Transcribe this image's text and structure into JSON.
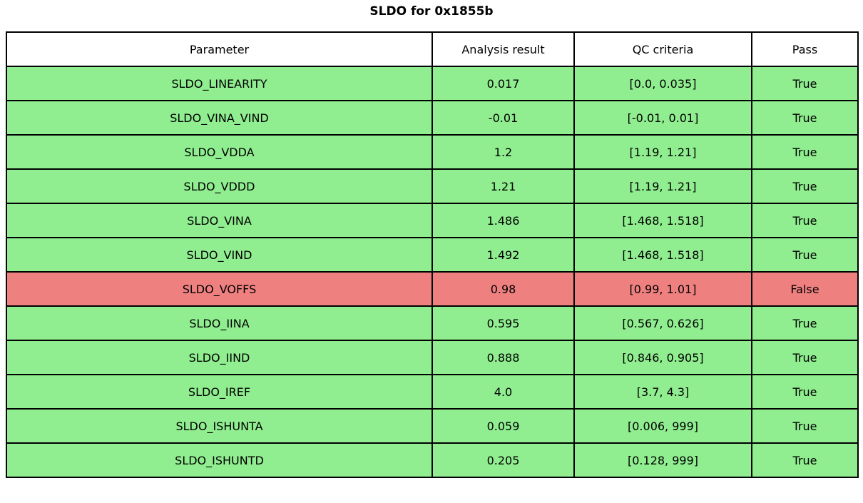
{
  "colors": {
    "pass_green": "#90EE90",
    "fail_red": "#EF8080",
    "header_bg": "#FFFFFF",
    "border": "#000000",
    "text": "#000000"
  },
  "chart_data": {
    "type": "table",
    "title": "SLDO for 0x1855b",
    "columns": [
      "Parameter",
      "Analysis result",
      "QC criteria",
      "Pass"
    ],
    "rows": [
      {
        "parameter": "SLDO_LINEARITY",
        "analysis_result": "0.017",
        "qc_criteria": "[0.0, 0.035]",
        "pass": "True"
      },
      {
        "parameter": "SLDO_VINA_VIND",
        "analysis_result": "-0.01",
        "qc_criteria": "[-0.01, 0.01]",
        "pass": "True"
      },
      {
        "parameter": "SLDO_VDDA",
        "analysis_result": "1.2",
        "qc_criteria": "[1.19, 1.21]",
        "pass": "True"
      },
      {
        "parameter": "SLDO_VDDD",
        "analysis_result": "1.21",
        "qc_criteria": "[1.19, 1.21]",
        "pass": "True"
      },
      {
        "parameter": "SLDO_VINA",
        "analysis_result": "1.486",
        "qc_criteria": "[1.468, 1.518]",
        "pass": "True"
      },
      {
        "parameter": "SLDO_VIND",
        "analysis_result": "1.492",
        "qc_criteria": "[1.468, 1.518]",
        "pass": "True"
      },
      {
        "parameter": "SLDO_VOFFS",
        "analysis_result": "0.98",
        "qc_criteria": "[0.99, 1.01]",
        "pass": "False"
      },
      {
        "parameter": "SLDO_IINA",
        "analysis_result": "0.595",
        "qc_criteria": "[0.567, 0.626]",
        "pass": "True"
      },
      {
        "parameter": "SLDO_IIND",
        "analysis_result": "0.888",
        "qc_criteria": "[0.846, 0.905]",
        "pass": "True"
      },
      {
        "parameter": "SLDO_IREF",
        "analysis_result": "4.0",
        "qc_criteria": "[3.7, 4.3]",
        "pass": "True"
      },
      {
        "parameter": "SLDO_ISHUNTA",
        "analysis_result": "0.059",
        "qc_criteria": "[0.006, 999]",
        "pass": "True"
      },
      {
        "parameter": "SLDO_ISHUNTD",
        "analysis_result": "0.205",
        "qc_criteria": "[0.128, 999]",
        "pass": "True"
      }
    ]
  }
}
